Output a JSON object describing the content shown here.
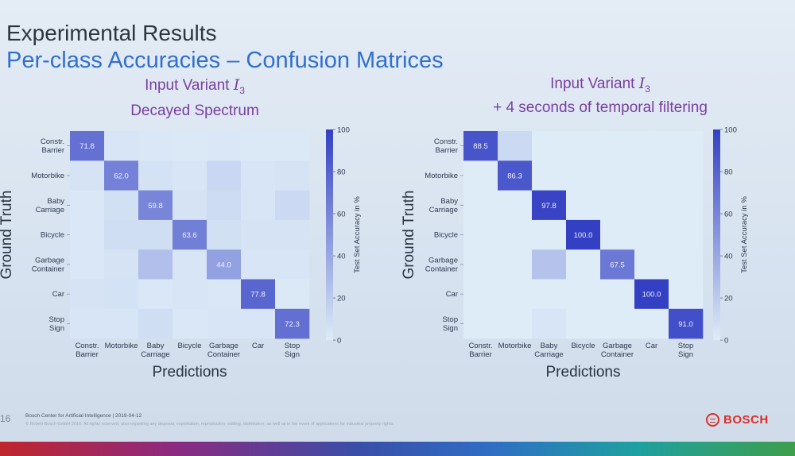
{
  "slide": {
    "title": "Experimental Results",
    "subtitle": "Per-class Accuracies – Confusion Matrices",
    "page_number": "16",
    "footer_line1": "Bosch Center for Artificial Intelligence | 2019-04-12",
    "footer_line2": "© Robert Bosch GmbH 2019. All rights reserved, also regarding any disposal, exploitation, reproduction, editing, distribution, as well as in the event of applications for industrial property rights.",
    "brand": "BOSCH"
  },
  "panels": [
    {
      "heading_prefix": "Input Variant ",
      "heading_var": "I",
      "heading_sub": "3",
      "heading_line2": "Decayed Spectrum"
    },
    {
      "heading_prefix": "Input Variant ",
      "heading_var": "I",
      "heading_sub": "3",
      "heading_line2": "+ 4 seconds of temporal filtering"
    }
  ],
  "chart_data": [
    {
      "type": "heatmap",
      "xlabel": "Predictions",
      "ylabel": "Ground Truth",
      "colorbar_label": "Test Set Accuracy in %",
      "colorbar_ticks": [
        "0",
        "20",
        "40",
        "60",
        "80",
        "100"
      ],
      "zlim": [
        0,
        100
      ],
      "row_labels": [
        [
          "Constr.",
          "Barrier"
        ],
        [
          "Motorbike"
        ],
        [
          "Baby",
          "Carriage"
        ],
        [
          "Bicycle"
        ],
        [
          "Garbage",
          "Container"
        ],
        [
          "Car"
        ],
        [
          "Stop",
          "Sign"
        ]
      ],
      "col_labels": [
        [
          "Constr.",
          "Barrier"
        ],
        [
          "Motorbike"
        ],
        [
          "Baby",
          "Carriage"
        ],
        [
          "Bicycle"
        ],
        [
          "Garbage",
          "Container"
        ],
        [
          "Car"
        ],
        [
          "Stop",
          "Sign"
        ]
      ],
      "matrix": [
        [
          71.8,
          4,
          3,
          2,
          3,
          2,
          2
        ],
        [
          5,
          62.0,
          6,
          4,
          12,
          4,
          5
        ],
        [
          3,
          7,
          59.8,
          5,
          10,
          4,
          11
        ],
        [
          3,
          8,
          8,
          63.6,
          7,
          5,
          5
        ],
        [
          3,
          5,
          26,
          4,
          44.0,
          4,
          4
        ],
        [
          5,
          6,
          3,
          4,
          3,
          77.8,
          2
        ],
        [
          4,
          4,
          8,
          3,
          4,
          4,
          72.3
        ]
      ],
      "annotations": [
        "71.8",
        "62.0",
        "59.8",
        "63.6",
        "44.0",
        "77.8",
        "72.3"
      ]
    },
    {
      "type": "heatmap",
      "xlabel": "Predictions",
      "ylabel": "Ground Truth",
      "colorbar_label": "Test Set Accuracy in %",
      "colorbar_ticks": [
        "0",
        "20",
        "40",
        "60",
        "80",
        "100"
      ],
      "zlim": [
        0,
        100
      ],
      "row_labels": [
        [
          "Constr.",
          "Barrier"
        ],
        [
          "Motorbike"
        ],
        [
          "Baby",
          "Carriage"
        ],
        [
          "Bicycle"
        ],
        [
          "Garbage",
          "Container"
        ],
        [
          "Car"
        ],
        [
          "Stop",
          "Sign"
        ]
      ],
      "col_labels": [
        [
          "Constr.",
          "Barrier"
        ],
        [
          "Motorbike"
        ],
        [
          "Baby",
          "Carriage"
        ],
        [
          "Bicycle"
        ],
        [
          "Garbage",
          "Container"
        ],
        [
          "Car"
        ],
        [
          "Stop",
          "Sign"
        ]
      ],
      "matrix": [
        [
          88.5,
          11,
          0,
          0,
          0,
          0,
          0
        ],
        [
          0,
          86.3,
          0,
          0,
          0,
          0,
          0
        ],
        [
          0,
          0,
          97.8,
          0,
          0,
          0,
          0
        ],
        [
          0,
          0,
          0,
          100.0,
          0,
          0,
          0
        ],
        [
          0,
          0,
          24,
          0,
          67.5,
          0,
          0
        ],
        [
          0,
          0,
          0,
          0,
          0,
          100.0,
          0
        ],
        [
          0,
          0,
          4,
          0,
          0,
          0,
          91.0
        ]
      ],
      "annotations": [
        "88.5",
        "86.3",
        "97.8",
        "100.0",
        "67.5",
        "100.0",
        "91.0"
      ]
    }
  ]
}
